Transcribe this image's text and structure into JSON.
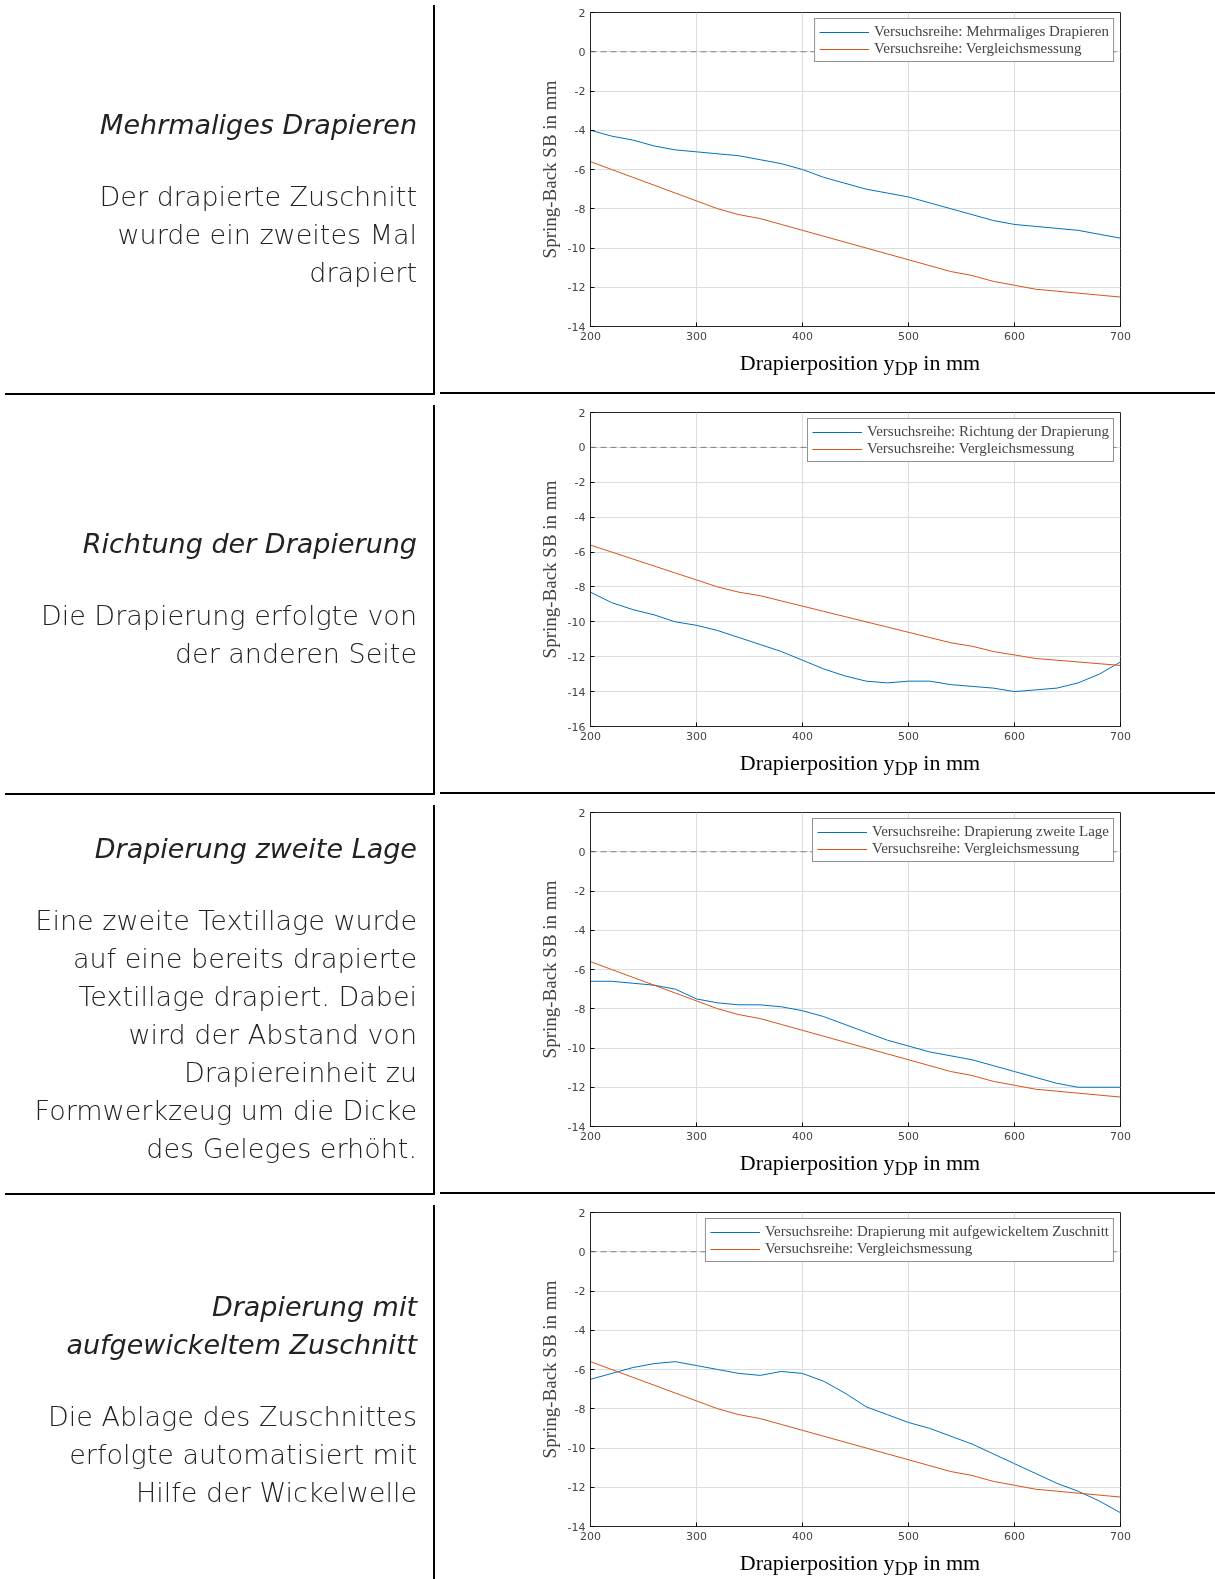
{
  "chart_data": [
    {
      "type": "line",
      "title": "Mehrmaliges Drapieren",
      "subtitle": "Der drapierte Zuschnitt wurde ein zweites Mal drapiert",
      "xlabel": "Drapierposition y$_{DP}$ in mm",
      "ylabel": "Spring-Back SB in mm",
      "x": [
        200,
        220,
        240,
        260,
        280,
        300,
        320,
        340,
        360,
        380,
        400,
        420,
        440,
        460,
        480,
        500,
        520,
        540,
        560,
        580,
        600,
        620,
        640,
        660,
        680,
        700
      ],
      "xlim": [
        200,
        700
      ],
      "xticks": [
        200,
        300,
        400,
        500,
        600,
        700
      ],
      "ylim": [
        -14,
        2
      ],
      "yticks": [
        -14,
        -12,
        -10,
        -8,
        -6,
        -4,
        -2,
        0,
        2
      ],
      "grid": true,
      "legend": "top right",
      "ref_lines": [
        {
          "axis": "y",
          "value": 0,
          "color": "#808080",
          "line_style": "dashed"
        }
      ],
      "series": [
        {
          "name": "Versuchsreihe: Mehrmaliges Drapieren",
          "color": "#0072bd",
          "values": [
            -4.0,
            -4.3,
            -4.5,
            -4.8,
            -5.0,
            -5.1,
            -5.2,
            -5.3,
            -5.5,
            -5.7,
            -6.0,
            -6.4,
            -6.7,
            -7.0,
            -7.2,
            -7.4,
            -7.7,
            -8.0,
            -8.3,
            -8.6,
            -8.8,
            -8.9,
            -9.0,
            -9.1,
            -9.3,
            -9.5
          ]
        },
        {
          "name": "Versuchsreihe: Vergleichsmessung",
          "color": "#d95319",
          "values": [
            -5.6,
            -6.0,
            -6.4,
            -6.8,
            -7.2,
            -7.6,
            -8.0,
            -8.3,
            -8.5,
            -8.8,
            -9.1,
            -9.4,
            -9.7,
            -10.0,
            -10.3,
            -10.6,
            -10.9,
            -11.2,
            -11.4,
            -11.7,
            -11.9,
            -12.1,
            -12.2,
            -12.3,
            -12.4,
            -12.5
          ]
        }
      ]
    },
    {
      "type": "line",
      "title": "Richtung der Drapierung",
      "subtitle": "Die Drapierung erfolgte von der anderen Seite",
      "xlabel": "Drapierposition y$_{DP}$ in mm",
      "ylabel": "Spring-Back SB in mm",
      "x": [
        200,
        220,
        240,
        260,
        280,
        300,
        320,
        340,
        360,
        380,
        400,
        420,
        440,
        460,
        480,
        500,
        520,
        540,
        560,
        580,
        600,
        620,
        640,
        660,
        680,
        700
      ],
      "xlim": [
        200,
        700
      ],
      "xticks": [
        200,
        300,
        400,
        500,
        600,
        700
      ],
      "ylim": [
        -16,
        2
      ],
      "yticks": [
        -16,
        -14,
        -12,
        -10,
        -8,
        -6,
        -4,
        -2,
        0,
        2
      ],
      "grid": true,
      "legend": "top right",
      "ref_lines": [
        {
          "axis": "y",
          "value": 0,
          "color": "#808080",
          "line_style": "dashed"
        }
      ],
      "series": [
        {
          "name": "Versuchsreihe: Richtung der Drapierung",
          "color": "#0072bd",
          "values": [
            -8.3,
            -8.9,
            -9.3,
            -9.6,
            -10.0,
            -10.2,
            -10.5,
            -10.9,
            -11.3,
            -11.7,
            -12.2,
            -12.7,
            -13.1,
            -13.4,
            -13.5,
            -13.4,
            -13.4,
            -13.6,
            -13.7,
            -13.8,
            -14.0,
            -13.9,
            -13.8,
            -13.5,
            -13.0,
            -12.3
          ]
        },
        {
          "name": "Versuchsreihe: Vergleichsmessung",
          "color": "#d95319",
          "values": [
            -5.6,
            -6.0,
            -6.4,
            -6.8,
            -7.2,
            -7.6,
            -8.0,
            -8.3,
            -8.5,
            -8.8,
            -9.1,
            -9.4,
            -9.7,
            -10.0,
            -10.3,
            -10.6,
            -10.9,
            -11.2,
            -11.4,
            -11.7,
            -11.9,
            -12.1,
            -12.2,
            -12.3,
            -12.4,
            -12.5
          ]
        }
      ]
    },
    {
      "type": "line",
      "title": "Drapierung zweite Lage",
      "subtitle": "Eine zweite Textillage wurde auf eine bereits drapierte Textillage drapiert. Dabei wird der Abstand von Drapiereinheit zu Formwerkzeug um die Dicke des Geleges erhöht.",
      "xlabel": "Drapierposition y$_{DP}$ in mm",
      "ylabel": "Spring-Back SB in mm",
      "x": [
        200,
        220,
        240,
        260,
        280,
        300,
        320,
        340,
        360,
        380,
        400,
        420,
        440,
        460,
        480,
        500,
        520,
        540,
        560,
        580,
        600,
        620,
        640,
        660,
        680,
        700
      ],
      "xlim": [
        200,
        700
      ],
      "xticks": [
        200,
        300,
        400,
        500,
        600,
        700
      ],
      "ylim": [
        -14,
        2
      ],
      "yticks": [
        -14,
        -12,
        -10,
        -8,
        -6,
        -4,
        -2,
        0,
        2
      ],
      "grid": true,
      "legend": "top right",
      "ref_lines": [
        {
          "axis": "y",
          "value": 0,
          "color": "#808080",
          "line_style": "dashed"
        }
      ],
      "series": [
        {
          "name": "Versuchsreihe: Drapierung zweite Lage",
          "color": "#0072bd",
          "values": [
            -6.6,
            -6.6,
            -6.7,
            -6.8,
            -7.0,
            -7.5,
            -7.7,
            -7.8,
            -7.8,
            -7.9,
            -8.1,
            -8.4,
            -8.8,
            -9.2,
            -9.6,
            -9.9,
            -10.2,
            -10.4,
            -10.6,
            -10.9,
            -11.2,
            -11.5,
            -11.8,
            -12.0,
            -12.0,
            -12.0
          ]
        },
        {
          "name": "Versuchsreihe: Vergleichsmessung",
          "color": "#d95319",
          "values": [
            -5.6,
            -6.0,
            -6.4,
            -6.8,
            -7.2,
            -7.6,
            -8.0,
            -8.3,
            -8.5,
            -8.8,
            -9.1,
            -9.4,
            -9.7,
            -10.0,
            -10.3,
            -10.6,
            -10.9,
            -11.2,
            -11.4,
            -11.7,
            -11.9,
            -12.1,
            -12.2,
            -12.3,
            -12.4,
            -12.5
          ]
        }
      ]
    },
    {
      "type": "line",
      "title": "Drapierung mit aufgewickeltem Zuschnitt",
      "subtitle": "Die Ablage des Zuschnittes erfolgte automatisiert mit Hilfe der Wickelwelle",
      "xlabel": "Drapierposition y$_{DP}$ in mm",
      "ylabel": "Spring-Back SB in mm",
      "x": [
        200,
        220,
        240,
        260,
        280,
        300,
        320,
        340,
        360,
        380,
        400,
        420,
        440,
        460,
        480,
        500,
        520,
        540,
        560,
        580,
        600,
        620,
        640,
        660,
        680,
        700
      ],
      "xlim": [
        200,
        700
      ],
      "xticks": [
        200,
        300,
        400,
        500,
        600,
        700
      ],
      "ylim": [
        -14,
        2
      ],
      "yticks": [
        -14,
        -12,
        -10,
        -8,
        -6,
        -4,
        -2,
        0,
        2
      ],
      "grid": true,
      "legend": "top right",
      "ref_lines": [
        {
          "axis": "y",
          "value": 0,
          "color": "#808080",
          "line_style": "dashed"
        }
      ],
      "series": [
        {
          "name": "Versuchsreihe: Drapierung mit aufgewickeltem Zuschnitt",
          "color": "#0072bd",
          "values": [
            -6.5,
            -6.2,
            -5.9,
            -5.7,
            -5.6,
            -5.8,
            -6.0,
            -6.2,
            -6.3,
            -6.1,
            -6.2,
            -6.6,
            -7.2,
            -7.9,
            -8.3,
            -8.7,
            -9.0,
            -9.4,
            -9.8,
            -10.3,
            -10.8,
            -11.3,
            -11.8,
            -12.2,
            -12.7,
            -13.3
          ]
        },
        {
          "name": "Versuchsreihe: Vergleichsmessung",
          "color": "#d95319",
          "values": [
            -5.6,
            -6.0,
            -6.4,
            -6.8,
            -7.2,
            -7.6,
            -8.0,
            -8.3,
            -8.5,
            -8.8,
            -9.1,
            -9.4,
            -9.7,
            -10.0,
            -10.3,
            -10.6,
            -10.9,
            -11.2,
            -11.4,
            -11.7,
            -11.9,
            -12.1,
            -12.2,
            -12.3,
            -12.4,
            -12.5
          ]
        }
      ]
    }
  ]
}
